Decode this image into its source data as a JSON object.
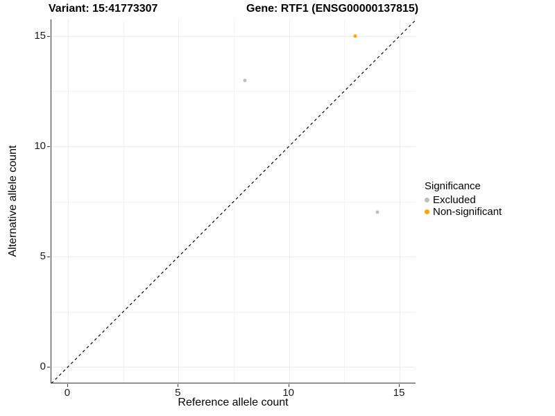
{
  "titles": {
    "variant": "Variant: 15:41773307",
    "gene": "Gene: RTF1 (ENSG00000137815)"
  },
  "chart_data": {
    "type": "scatter",
    "title_left": "Variant: 15:41773307",
    "title_right": "Gene: RTF1 (ENSG00000137815)",
    "xlabel": "Reference allele count",
    "ylabel": "Alternative allele count",
    "xlim": [
      -0.75,
      15.75
    ],
    "ylim": [
      -0.75,
      15.75
    ],
    "x_major_ticks": [
      0,
      5,
      10,
      15
    ],
    "y_major_ticks": [
      0,
      5,
      10,
      15
    ],
    "x_minor_ticks": [
      2.5,
      7.5,
      12.5
    ],
    "y_minor_ticks": [
      2.5,
      7.5,
      12.5
    ],
    "grid": true,
    "identity_line": {
      "from": [
        -0.75,
        -0.75
      ],
      "to": [
        15.75,
        15.75
      ],
      "style": "dashed",
      "color": "#000000"
    },
    "series": [
      {
        "name": "Excluded",
        "color": "#BEBEBE",
        "points": [
          [
            8,
            13
          ],
          [
            14,
            7
          ]
        ]
      },
      {
        "name": "Non-significant",
        "color": "#FFA500",
        "points": [
          [
            13,
            15
          ]
        ]
      }
    ],
    "legend": {
      "title": "Significance",
      "position": "right"
    }
  },
  "colors": {
    "background": "#ffffff",
    "axis_line": "#333333",
    "grid_major": "#ebebeb",
    "grid_minor": "#f4f4f4",
    "text": "#000000",
    "excluded_point": "#BEBEBE",
    "non_significant_point": "#FFA500"
  }
}
